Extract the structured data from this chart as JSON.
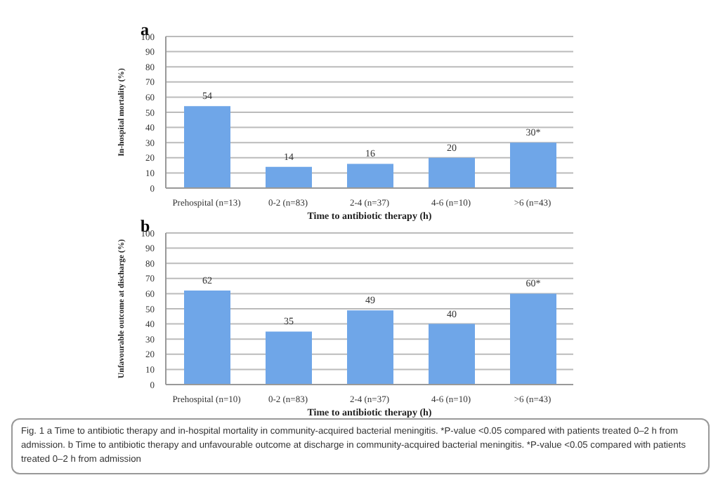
{
  "chart_data": [
    {
      "type": "bar",
      "title": "a",
      "xlabel": "Time to antibiotic therapy (h)",
      "ylabel": "In-hospital mortality (%)",
      "categories": [
        "Prehospital (n=13)",
        "0-2 (n=83)",
        "2-4 (n=37)",
        "4-6 (n=10)",
        ">6 (n=43)"
      ],
      "values": [
        54,
        14,
        16,
        20,
        30
      ],
      "value_labels": [
        "54",
        "14",
        "16",
        "20",
        "30*"
      ],
      "color": "#6fa6e8",
      "ylim": [
        0,
        100
      ],
      "yticks": [
        0,
        10,
        20,
        30,
        40,
        50,
        60,
        70,
        80,
        90,
        100
      ],
      "grid": "y",
      "legend": false
    },
    {
      "type": "bar",
      "title": "b",
      "xlabel": "Time to antibiotic therapy (h)",
      "ylabel": "Unfavourable outcome at discharge (%)",
      "categories": [
        "Prehospital (n=10)",
        "0-2 (n=83)",
        "2-4 (n=37)",
        "4-6 (n=10)",
        ">6 (n=43)"
      ],
      "values": [
        62,
        35,
        49,
        40,
        60
      ],
      "value_labels": [
        "62",
        "35",
        "49",
        "40",
        "60*"
      ],
      "color": "#6fa6e8",
      "ylim": [
        0,
        100
      ],
      "yticks": [
        0,
        10,
        20,
        30,
        40,
        50,
        60,
        70,
        80,
        90,
        100
      ],
      "grid": "y",
      "legend": false,
      "annotations": [
        "Fig. 1 a Time to antibiotic therapy and in-hospital mortality in community-acquired bacterial meningitis. *P-value <0.05 compared with patients treated 0–2 h from admission. b Time to antibiotic therapy and unfavourable outcome at discharge in community-acquired bacterial meningitis. *P-value <0.05 compared with patients treated 0–2 h from admission"
      ]
    }
  ]
}
